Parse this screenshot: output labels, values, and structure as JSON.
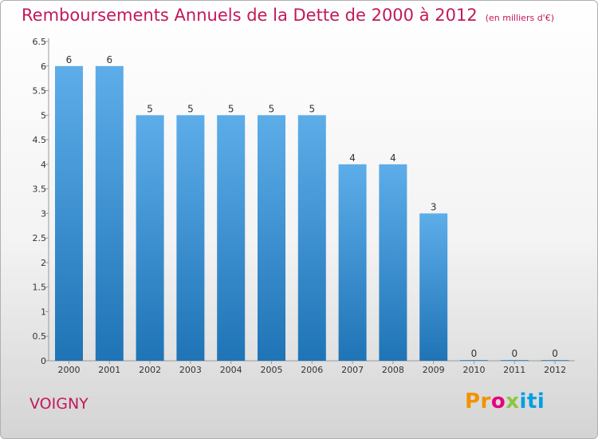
{
  "header": {
    "title": "Remboursements Annuels de la Dette de 2000 à 2012",
    "unit": "(en milliers d'€)"
  },
  "footer": {
    "commune": "VOIGNY",
    "logo_parts": [
      "Pr",
      "o",
      "x",
      "iti"
    ]
  },
  "colors": {
    "title": "#c2185b",
    "bar_top": "#5dade9",
    "bar_bottom": "#1f74b6"
  },
  "chart_data": {
    "type": "bar",
    "title": "Remboursements Annuels de la Dette de 2000 à 2012",
    "xlabel": "",
    "ylabel": "",
    "categories": [
      "2000",
      "2001",
      "2002",
      "2003",
      "2004",
      "2005",
      "2006",
      "2007",
      "2008",
      "2009",
      "2010",
      "2011",
      "2012"
    ],
    "values": [
      6,
      6,
      5,
      5,
      5,
      5,
      5,
      4,
      4,
      3,
      0,
      0,
      0
    ],
    "value_labels": [
      "6",
      "6",
      "5",
      "5",
      "5",
      "5",
      "5",
      "4",
      "4",
      "3",
      "0",
      "0",
      "0"
    ],
    "ylim": [
      0,
      6.5
    ],
    "yticks": [
      "0",
      "0.5",
      "1",
      "1.5",
      "2",
      "2.5",
      "3",
      "3.5",
      "4",
      "4.5",
      "5",
      "5.5",
      "6",
      "6.5"
    ],
    "grid": false,
    "legend": "none"
  }
}
